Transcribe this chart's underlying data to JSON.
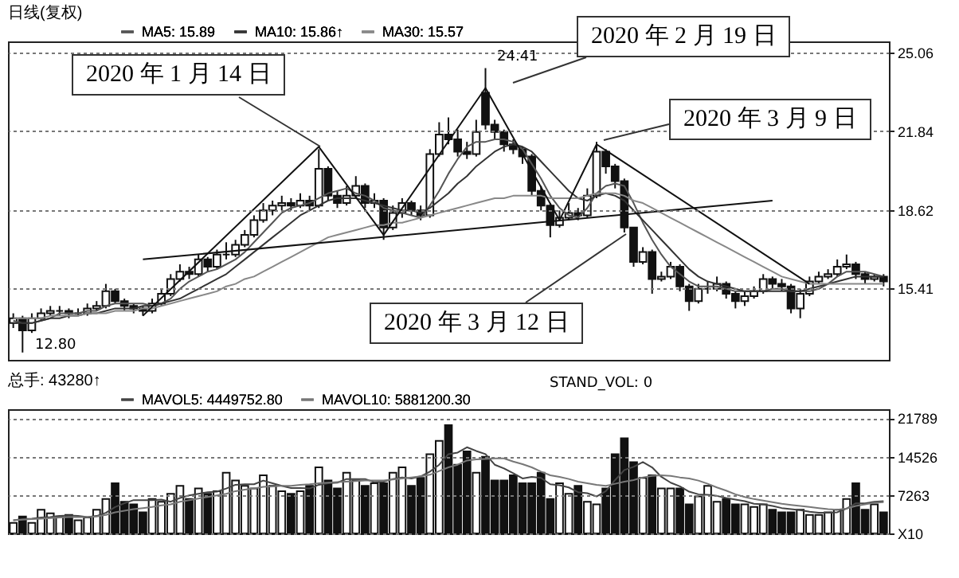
{
  "chart_data": [
    {
      "type": "candlestick",
      "title": "日线(复权)",
      "categories": [
        null,
        null,
        null,
        null,
        null,
        null,
        null,
        null,
        null,
        null,
        null,
        null,
        null,
        null,
        null,
        null,
        null,
        null,
        null,
        null,
        null,
        null,
        null,
        null,
        null,
        null,
        null,
        null,
        null,
        null,
        null,
        null,
        null,
        null,
        null,
        null,
        null,
        null,
        null,
        null,
        null,
        null,
        null,
        null,
        null,
        null,
        null,
        null,
        null,
        null,
        null,
        null,
        null,
        null,
        null,
        null,
        null,
        null,
        null,
        null,
        null,
        null,
        null,
        null,
        null,
        null,
        null,
        null,
        null,
        null,
        null,
        null,
        null,
        null,
        null,
        null,
        null,
        null,
        null,
        null,
        null,
        null,
        null,
        null,
        null,
        null,
        null,
        null,
        null,
        null,
        null,
        null,
        null,
        null,
        null
      ],
      "ohlc": [
        [
          14.0,
          14.4,
          13.8,
          14.2
        ],
        [
          14.2,
          14.3,
          12.8,
          13.7
        ],
        [
          13.7,
          14.4,
          13.6,
          14.2
        ],
        [
          14.2,
          14.6,
          14.1,
          14.4
        ],
        [
          14.4,
          14.7,
          14.3,
          14.5
        ],
        [
          14.5,
          14.7,
          14.3,
          14.5
        ],
        [
          14.5,
          14.6,
          14.2,
          14.4
        ],
        [
          14.4,
          14.6,
          14.3,
          14.4
        ],
        [
          14.4,
          14.8,
          14.3,
          14.6
        ],
        [
          14.6,
          14.9,
          14.5,
          14.7
        ],
        [
          14.7,
          15.6,
          14.6,
          15.3
        ],
        [
          15.3,
          15.4,
          14.8,
          14.9
        ],
        [
          14.9,
          15.0,
          14.5,
          14.7
        ],
        [
          14.7,
          14.8,
          14.4,
          14.6
        ],
        [
          14.6,
          14.7,
          14.3,
          14.5
        ],
        [
          14.5,
          15.0,
          14.4,
          14.8
        ],
        [
          14.8,
          15.4,
          14.7,
          15.2
        ],
        [
          15.2,
          16.0,
          15.1,
          15.8
        ],
        [
          15.8,
          16.4,
          15.7,
          16.1
        ],
        [
          16.1,
          16.3,
          15.8,
          16.0
        ],
        [
          16.0,
          16.8,
          15.9,
          16.6
        ],
        [
          16.6,
          16.7,
          16.1,
          16.3
        ],
        [
          16.3,
          17.0,
          16.2,
          16.8
        ],
        [
          16.8,
          17.3,
          16.6,
          16.8
        ],
        [
          16.8,
          17.4,
          16.7,
          17.2
        ],
        [
          17.2,
          17.8,
          17.1,
          17.6
        ],
        [
          17.6,
          18.4,
          17.5,
          18.2
        ],
        [
          18.2,
          18.9,
          18.1,
          18.6
        ],
        [
          18.6,
          19.0,
          18.4,
          18.8
        ],
        [
          18.8,
          19.2,
          18.6,
          18.9
        ],
        [
          18.9,
          19.1,
          18.6,
          18.8
        ],
        [
          18.8,
          19.3,
          18.7,
          19.0
        ],
        [
          19.0,
          19.2,
          18.6,
          18.8
        ],
        [
          18.8,
          21.1,
          18.7,
          20.3
        ],
        [
          20.3,
          20.4,
          19.0,
          19.2
        ],
        [
          19.2,
          19.4,
          18.7,
          18.9
        ],
        [
          18.9,
          19.6,
          18.8,
          19.2
        ],
        [
          19.2,
          20.0,
          19.1,
          19.6
        ],
        [
          19.6,
          19.7,
          18.7,
          18.9
        ],
        [
          18.9,
          19.3,
          18.7,
          19.0
        ],
        [
          19.0,
          19.1,
          17.4,
          17.9
        ],
        [
          17.9,
          18.8,
          17.8,
          18.5
        ],
        [
          18.5,
          19.1,
          18.3,
          18.9
        ],
        [
          18.9,
          19.0,
          18.4,
          18.6
        ],
        [
          18.6,
          18.8,
          18.2,
          18.4
        ],
        [
          18.4,
          21.1,
          18.3,
          20.9
        ],
        [
          20.9,
          22.2,
          20.8,
          21.7
        ],
        [
          21.7,
          22.4,
          21.3,
          21.5
        ],
        [
          21.5,
          21.9,
          20.8,
          21.0
        ],
        [
          21.0,
          21.4,
          20.7,
          20.9
        ],
        [
          20.9,
          22.3,
          20.8,
          21.8
        ],
        [
          23.4,
          24.41,
          21.9,
          22.1
        ],
        [
          22.1,
          22.3,
          21.5,
          21.8
        ],
        [
          21.8,
          21.9,
          21.0,
          21.3
        ],
        [
          21.3,
          21.5,
          20.9,
          21.1
        ],
        [
          21.1,
          21.2,
          20.5,
          20.8
        ],
        [
          20.8,
          20.9,
          19.2,
          19.4
        ],
        [
          19.4,
          19.6,
          18.6,
          18.8
        ],
        [
          18.8,
          18.9,
          17.5,
          18.0
        ],
        [
          18.0,
          18.6,
          17.9,
          18.3
        ],
        [
          18.3,
          18.9,
          18.2,
          18.5
        ],
        [
          18.5,
          18.7,
          18.2,
          18.4
        ],
        [
          18.4,
          19.5,
          18.3,
          19.2
        ],
        [
          19.2,
          21.4,
          19.1,
          21.0
        ],
        [
          21.0,
          21.1,
          20.1,
          20.4
        ],
        [
          20.4,
          20.5,
          19.5,
          19.8
        ],
        [
          19.8,
          19.9,
          17.7,
          17.9
        ],
        [
          17.9,
          17.9,
          16.3,
          16.5
        ],
        [
          16.5,
          17.1,
          16.4,
          16.9
        ],
        [
          16.9,
          17.0,
          15.2,
          15.8
        ],
        [
          15.8,
          16.1,
          15.7,
          15.9
        ],
        [
          15.9,
          16.5,
          15.8,
          16.3
        ],
        [
          16.3,
          16.4,
          15.3,
          15.5
        ],
        [
          15.5,
          15.6,
          14.5,
          14.9
        ],
        [
          14.9,
          15.6,
          14.8,
          15.4
        ],
        [
          15.4,
          15.7,
          15.2,
          15.4
        ],
        [
          15.4,
          15.9,
          15.3,
          15.6
        ],
        [
          15.6,
          15.7,
          15.0,
          15.2
        ],
        [
          15.2,
          15.3,
          14.6,
          14.9
        ],
        [
          14.9,
          15.3,
          14.7,
          15.1
        ],
        [
          15.1,
          15.5,
          15.0,
          15.3
        ],
        [
          15.3,
          16.0,
          15.2,
          15.8
        ],
        [
          15.8,
          15.9,
          15.4,
          15.6
        ],
        [
          15.6,
          15.8,
          15.3,
          15.5
        ],
        [
          15.5,
          15.6,
          14.4,
          14.6
        ],
        [
          14.6,
          15.4,
          14.2,
          15.2
        ],
        [
          15.2,
          15.9,
          15.1,
          15.7
        ],
        [
          15.7,
          16.1,
          15.6,
          15.9
        ],
        [
          15.9,
          16.2,
          15.8,
          16.0
        ],
        [
          16.0,
          16.6,
          15.9,
          16.3
        ],
        [
          16.3,
          16.8,
          16.2,
          16.4
        ],
        [
          16.4,
          16.5,
          15.8,
          16.0
        ],
        [
          16.0,
          16.1,
          15.6,
          15.8
        ],
        [
          15.8,
          16.0,
          15.7,
          15.9
        ],
        [
          15.9,
          16.0,
          15.5,
          15.7
        ]
      ],
      "series": [
        {
          "type": "line",
          "name": "MA5: 15.89",
          "color": "#555555",
          "values": [
            14.1,
            14.0,
            14.0,
            14.1,
            14.2,
            14.4,
            14.4,
            14.4,
            14.5,
            14.5,
            14.7,
            14.8,
            14.8,
            14.8,
            14.8,
            14.7,
            14.8,
            15.0,
            15.4,
            15.7,
            15.9,
            16.1,
            16.2,
            16.4,
            16.6,
            16.9,
            17.3,
            17.7,
            18.1,
            18.5,
            18.7,
            18.8,
            18.9,
            19.1,
            19.3,
            19.4,
            19.5,
            19.3,
            19.2,
            19.0,
            18.7,
            18.6,
            18.5,
            18.4,
            18.3,
            18.8,
            19.4,
            20.1,
            20.7,
            21.2,
            21.4,
            21.4,
            21.5,
            21.5,
            21.4,
            21.1,
            20.5,
            19.9,
            19.2,
            18.7,
            18.4,
            18.3,
            18.7,
            19.3,
            19.6,
            19.7,
            19.6,
            18.9,
            18.1,
            17.4,
            16.8,
            16.3,
            16.0,
            15.7,
            15.5,
            15.5,
            15.5,
            15.4,
            15.3,
            15.3,
            15.3,
            15.3,
            15.4,
            15.4,
            15.3,
            15.3,
            15.3,
            15.4,
            15.6,
            15.9,
            16.1,
            16.1,
            16.1,
            16.0,
            15.9
          ]
        },
        {
          "type": "line",
          "name": "MA10: 15.86↑",
          "color": "#333333",
          "values": [
            14.0,
            14.0,
            14.0,
            14.1,
            14.2,
            14.2,
            14.3,
            14.3,
            14.4,
            14.4,
            14.5,
            14.6,
            14.6,
            14.6,
            14.7,
            14.7,
            14.8,
            14.9,
            15.0,
            15.2,
            15.4,
            15.6,
            15.8,
            16.0,
            16.3,
            16.6,
            16.9,
            17.2,
            17.5,
            17.8,
            18.1,
            18.4,
            18.6,
            18.8,
            19.0,
            19.1,
            19.1,
            19.1,
            19.0,
            18.9,
            18.8,
            18.7,
            18.6,
            18.6,
            18.5,
            18.7,
            19.0,
            19.3,
            19.7,
            20.0,
            20.4,
            20.7,
            21.0,
            21.2,
            21.3,
            21.2,
            21.0,
            20.6,
            20.2,
            19.8,
            19.4,
            19.1,
            19.0,
            19.2,
            19.3,
            19.2,
            19.0,
            18.6,
            18.2,
            17.8,
            17.4,
            17.0,
            16.6,
            16.2,
            15.9,
            15.7,
            15.6,
            15.5,
            15.4,
            15.3,
            15.3,
            15.3,
            15.3,
            15.3,
            15.3,
            15.3,
            15.4,
            15.5,
            15.6,
            15.7,
            15.8,
            15.9,
            15.9,
            15.9,
            15.9
          ]
        },
        {
          "type": "line",
          "name": "MA30: 15.57",
          "color": "#888888",
          "values": [
            14.2,
            14.2,
            14.2,
            14.2,
            14.3,
            14.3,
            14.3,
            14.3,
            14.4,
            14.4,
            14.4,
            14.5,
            14.5,
            14.5,
            14.6,
            14.6,
            14.7,
            14.8,
            14.9,
            15.0,
            15.1,
            15.2,
            15.3,
            15.5,
            15.6,
            15.8,
            15.9,
            16.1,
            16.3,
            16.5,
            16.7,
            16.9,
            17.1,
            17.3,
            17.5,
            17.6,
            17.7,
            17.8,
            17.9,
            18.0,
            18.0,
            18.1,
            18.1,
            18.2,
            18.3,
            18.4,
            18.5,
            18.6,
            18.7,
            18.8,
            18.9,
            19.0,
            19.1,
            19.1,
            19.2,
            19.2,
            19.2,
            19.2,
            19.1,
            19.1,
            19.1,
            19.1,
            19.2,
            19.3,
            19.3,
            19.3,
            19.2,
            19.0,
            18.9,
            18.7,
            18.5,
            18.3,
            18.1,
            17.9,
            17.7,
            17.5,
            17.3,
            17.1,
            16.9,
            16.7,
            16.5,
            16.3,
            16.1,
            15.9,
            15.8,
            15.7,
            15.6,
            15.6,
            15.6,
            15.6,
            15.6,
            15.6,
            15.6,
            15.6,
            15.6
          ]
        },
        {
          "type": "line",
          "color": "#111111",
          "values": [
            null,
            null,
            null,
            null,
            null,
            null,
            null,
            null,
            null,
            null,
            null,
            null,
            null,
            null,
            14.3,
            null,
            null,
            null,
            null,
            null,
            null,
            null,
            null,
            null,
            null,
            null,
            null,
            null,
            null,
            null,
            null,
            null,
            null,
            21.2,
            null,
            null,
            null,
            null,
            null,
            null,
            17.6,
            null,
            null,
            null,
            null,
            null,
            null,
            null,
            null,
            null,
            null,
            23.6,
            null,
            null,
            null,
            null,
            null,
            null,
            null,
            18.2,
            null,
            null,
            null,
            21.3,
            null,
            null,
            null,
            null,
            null,
            null,
            null,
            null,
            null,
            null,
            null,
            null,
            null,
            null,
            null,
            null,
            null,
            null,
            null,
            null,
            null,
            null,
            15.6,
            null,
            null,
            null,
            null,
            null,
            null,
            null,
            null
          ]
        },
        {
          "type": "line",
          "color": "#111111",
          "values": [
            null,
            null,
            null,
            null,
            null,
            null,
            null,
            null,
            null,
            null,
            null,
            null,
            null,
            null,
            16.6,
            null,
            null,
            null,
            null,
            null,
            null,
            null,
            null,
            null,
            null,
            null,
            null,
            null,
            null,
            null,
            null,
            null,
            null,
            null,
            null,
            null,
            null,
            null,
            null,
            null,
            null,
            null,
            null,
            null,
            null,
            null,
            null,
            null,
            null,
            null,
            null,
            null,
            null,
            null,
            null,
            null,
            null,
            null,
            null,
            null,
            null,
            null,
            null,
            null,
            null,
            null,
            null,
            null,
            null,
            null,
            null,
            null,
            null,
            null,
            null,
            null,
            null,
            null,
            null,
            null,
            null,
            null,
            19.0,
            null,
            null,
            null,
            null,
            null,
            null,
            null,
            null,
            null,
            null,
            null,
            null
          ]
        }
      ],
      "ylim": [
        12.5,
        25.5
      ],
      "yticks": [
        25.06,
        21.84,
        18.62,
        15.41
      ],
      "grid": "y",
      "legend": "top left",
      "annotations": [
        "2020 年 1 月 14 日",
        "2020 年 2 月 19 日",
        "2020 年 3 月 9 日",
        "2020 年 3 月 12 日",
        "24.41",
        "12.80"
      ]
    },
    {
      "type": "bar",
      "title": "总手: 43280↑",
      "categories": [
        null,
        null,
        null,
        null,
        null,
        null,
        null,
        null,
        null,
        null,
        null,
        null,
        null,
        null,
        null,
        null,
        null,
        null,
        null,
        null,
        null,
        null,
        null,
        null,
        null,
        null,
        null,
        null,
        null,
        null,
        null,
        null,
        null,
        null,
        null,
        null,
        null,
        null,
        null,
        null,
        null,
        null,
        null,
        null,
        null,
        null,
        null,
        null,
        null,
        null,
        null,
        null,
        null,
        null,
        null,
        null,
        null,
        null,
        null,
        null,
        null,
        null,
        null,
        null,
        null,
        null,
        null,
        null,
        null,
        null,
        null,
        null,
        null,
        null,
        null,
        null,
        null,
        null,
        null,
        null,
        null,
        null,
        null,
        null,
        null,
        null,
        null,
        null,
        null,
        null,
        null,
        null,
        null,
        null,
        null
      ],
      "values": [
        2000,
        3200,
        2000,
        4500,
        3800,
        3200,
        3500,
        2500,
        3000,
        4500,
        6500,
        9500,
        6000,
        5500,
        4000,
        6500,
        6000,
        7500,
        9000,
        6500,
        8500,
        7500,
        8000,
        11500,
        10000,
        9000,
        8500,
        11000,
        9000,
        8000,
        7500,
        8000,
        9000,
        12500,
        10000,
        8500,
        11500,
        10000,
        9000,
        9500,
        9500,
        11500,
        12500,
        9000,
        10500,
        15000,
        17500,
        20500,
        13000,
        15500,
        11500,
        14500,
        10000,
        10000,
        11000,
        9500,
        9500,
        11500,
        6500,
        9500,
        7500,
        9000,
        6000,
        5500,
        8500,
        15000,
        18000,
        13500,
        10500,
        11000,
        8500,
        8500,
        8500,
        5500,
        7000,
        9000,
        6000,
        6500,
        5500,
        5500,
        5000,
        5500,
        4500,
        4000,
        4000,
        4500,
        3500,
        3500,
        4000,
        4500,
        6500,
        9500,
        4500,
        5500,
        4000
      ],
      "colors": [
        "#ffffff",
        "#111111",
        "#ffffff",
        "#ffffff",
        "#ffffff",
        "#ffffff",
        "#111111",
        "#ffffff",
        "#ffffff",
        "#ffffff",
        "#ffffff",
        "#111111",
        "#111111",
        "#111111",
        "#111111",
        "#ffffff",
        "#ffffff",
        "#ffffff",
        "#ffffff",
        "#111111",
        "#ffffff",
        "#111111",
        "#ffffff",
        "#ffffff",
        "#ffffff",
        "#ffffff",
        "#ffffff",
        "#ffffff",
        "#ffffff",
        "#ffffff",
        "#111111",
        "#ffffff",
        "#111111",
        "#ffffff",
        "#111111",
        "#111111",
        "#ffffff",
        "#ffffff",
        "#111111",
        "#ffffff",
        "#111111",
        "#ffffff",
        "#ffffff",
        "#111111",
        "#111111",
        "#ffffff",
        "#ffffff",
        "#111111",
        "#111111",
        "#111111",
        "#ffffff",
        "#111111",
        "#111111",
        "#111111",
        "#111111",
        "#111111",
        "#111111",
        "#111111",
        "#111111",
        "#ffffff",
        "#ffffff",
        "#111111",
        "#ffffff",
        "#ffffff",
        "#111111",
        "#111111",
        "#111111",
        "#111111",
        "#ffffff",
        "#111111",
        "#ffffff",
        "#ffffff",
        "#111111",
        "#111111",
        "#ffffff",
        "#ffffff",
        "#ffffff",
        "#111111",
        "#111111",
        "#ffffff",
        "#ffffff",
        "#ffffff",
        "#111111",
        "#111111",
        "#111111",
        "#ffffff",
        "#ffffff",
        "#ffffff",
        "#ffffff",
        "#ffffff",
        "#ffffff",
        "#111111",
        "#111111",
        "#ffffff",
        "#111111"
      ],
      "series": [
        {
          "type": "line",
          "name": "MAVOL5: 4449752.80",
          "color": "#444444",
          "values": [
            2500,
            2700,
            2800,
            3000,
            3100,
            3300,
            3400,
            3300,
            3100,
            3300,
            3900,
            5000,
            5700,
            6300,
            6300,
            6300,
            6400,
            6000,
            6700,
            7200,
            7500,
            7800,
            7900,
            8500,
            9200,
            9300,
            9300,
            10000,
            9500,
            9000,
            8600,
            8600,
            8500,
            9200,
            9500,
            9600,
            10300,
            10300,
            10300,
            9700,
            9800,
            10300,
            10600,
            10400,
            10800,
            11700,
            13000,
            15000,
            15300,
            16300,
            15600,
            15000,
            13000,
            12300,
            11400,
            10400,
            10700,
            10500,
            9300,
            9100,
            8700,
            7800,
            7600,
            7000,
            8000,
            10100,
            12000,
            12600,
            13500,
            12500,
            10700,
            9600,
            8900,
            7900,
            7400,
            7300,
            7100,
            6700,
            6400,
            6100,
            5600,
            5500,
            5200,
            4800,
            4600,
            4400,
            4100,
            3900,
            3900,
            4000,
            4700,
            5700,
            5700,
            6000,
            6100
          ]
        },
        {
          "type": "line",
          "name": "MAVOL10: 5881200.30",
          "color": "#777777",
          "values": [
            2500,
            2600,
            2700,
            2800,
            2900,
            3000,
            3100,
            3100,
            3100,
            3200,
            3500,
            4000,
            4300,
            4600,
            4800,
            5000,
            5300,
            5500,
            6000,
            6300,
            6600,
            6900,
            7200,
            7500,
            8000,
            8300,
            8500,
            8800,
            8900,
            9000,
            9000,
            9200,
            9300,
            9500,
            9600,
            9700,
            9800,
            9900,
            10000,
            10000,
            10000,
            10200,
            10400,
            10600,
            10800,
            11100,
            11800,
            12500,
            13000,
            13800,
            14000,
            14100,
            14200,
            14200,
            13600,
            13100,
            12500,
            11700,
            11000,
            10700,
            10300,
            9800,
            9500,
            9200,
            9000,
            9400,
            9800,
            10100,
            10600,
            10900,
            11000,
            10900,
            10600,
            10400,
            10000,
            9400,
            8700,
            8100,
            7400,
            6900,
            6500,
            6200,
            5900,
            5600,
            5400,
            5200,
            5000,
            4800,
            4600,
            4500,
            4700,
            5200,
            5500,
            5800,
            5900
          ]
        }
      ],
      "ylim": [
        0,
        23500
      ],
      "yticks": [
        21789,
        14526,
        7263,
        {
          "value": 0,
          "label": "X10"
        }
      ],
      "grid": "y",
      "legend": "top left",
      "annotations": [
        "STAND_VOL: 0"
      ]
    }
  ]
}
